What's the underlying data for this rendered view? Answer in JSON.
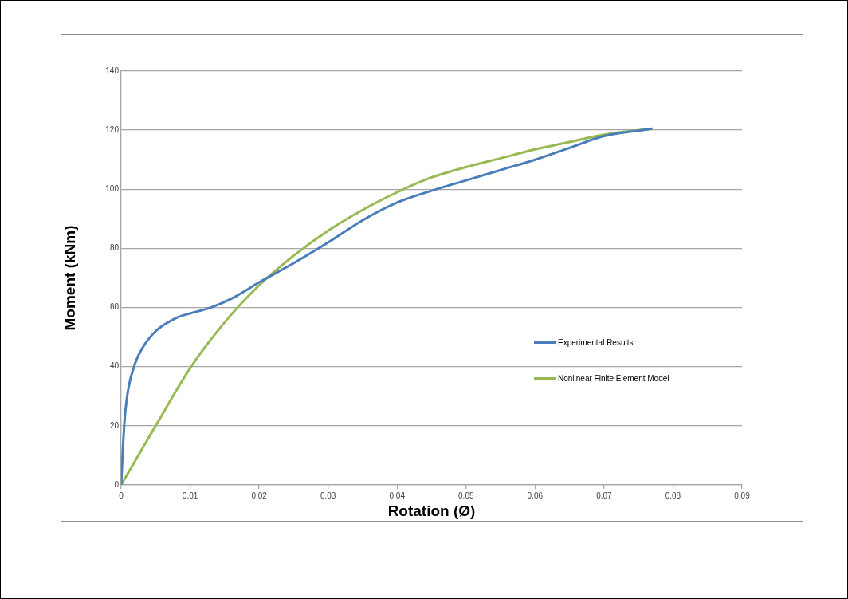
{
  "chart_data": {
    "type": "line",
    "xlabel": "Rotation (Ø)",
    "ylabel": "Moment (kNm)",
    "xlim": [
      0,
      0.09
    ],
    "xticks": [
      0,
      0.01,
      0.02,
      0.03,
      0.04,
      0.05,
      0.06,
      0.07,
      0.08,
      0.09
    ],
    "ylim": [
      0,
      140
    ],
    "yticks": [
      0,
      20,
      40,
      60,
      80,
      100,
      120,
      140
    ],
    "grid": "y",
    "legend": "right",
    "marker": "none",
    "line_style": "solid",
    "series": [
      {
        "name": "Experimental Results",
        "color": "#4a7ebb",
        "x": [
          0,
          0.0002,
          0.0005,
          0.001,
          0.002,
          0.003,
          0.005,
          0.008,
          0.01,
          0.013,
          0.016,
          0.02,
          0.025,
          0.03,
          0.035,
          0.04,
          0.045,
          0.05,
          0.055,
          0.06,
          0.065,
          0.07,
          0.077
        ],
        "values": [
          0,
          10,
          22,
          32,
          41,
          46,
          52,
          56.5,
          58,
          60,
          63,
          68.5,
          75,
          82,
          89.5,
          95.5,
          99.5,
          103,
          106.5,
          110,
          114,
          118,
          120.5
        ]
      },
      {
        "name": "Nonlinear Finite Element Model",
        "color": "#98b954",
        "x": [
          0,
          0.005,
          0.01,
          0.015,
          0.02,
          0.025,
          0.03,
          0.035,
          0.04,
          0.045,
          0.05,
          0.055,
          0.06,
          0.065,
          0.07,
          0.077
        ],
        "values": [
          0,
          20,
          39.5,
          55,
          67.5,
          77.5,
          86,
          93,
          99,
          104,
          107.5,
          110.5,
          113.5,
          116,
          118.5,
          120.5
        ]
      }
    ]
  }
}
